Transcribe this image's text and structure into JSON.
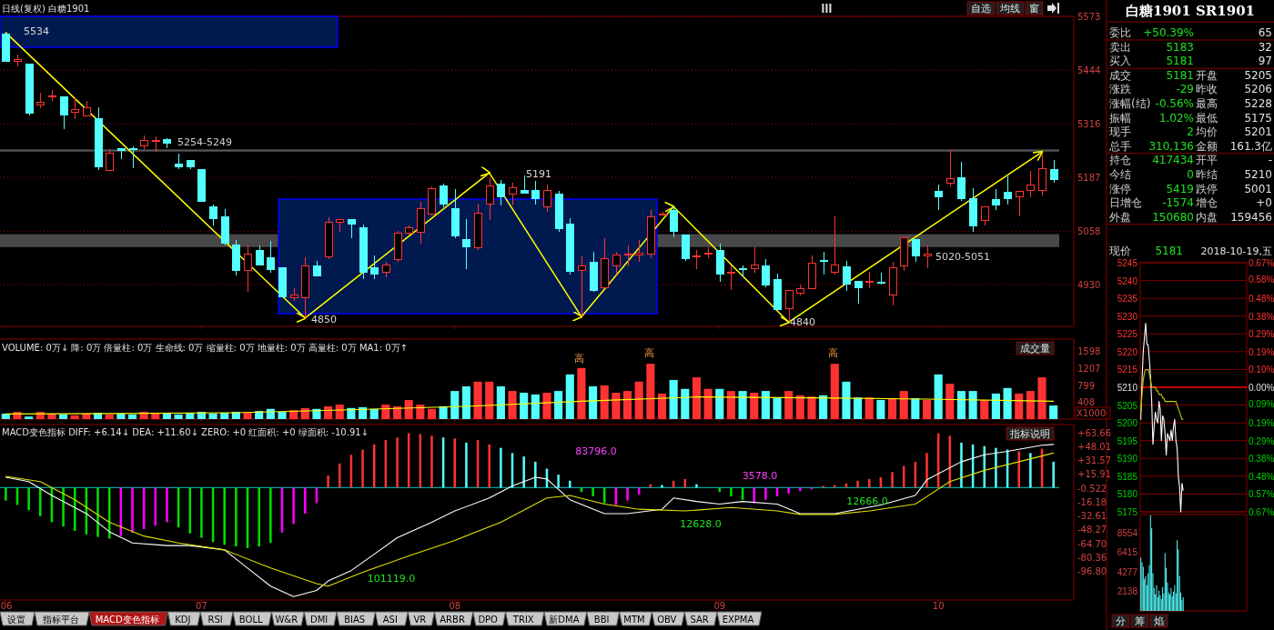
{
  "chart_data": [
    {
      "type": "candlestick",
      "title": "日线(复权) 白糖1901",
      "categories": [
        "06",
        null,
        null,
        null,
        null,
        null,
        null,
        null,
        null,
        null,
        null,
        null,
        null,
        null,
        null,
        null,
        null,
        "07",
        null,
        null,
        null,
        null,
        null,
        null,
        null,
        null,
        null,
        null,
        null,
        null,
        null,
        null,
        null,
        null,
        null,
        null,
        null,
        null,
        null,
        "08",
        null,
        null,
        null,
        null,
        null,
        null,
        null,
        null,
        null,
        null,
        null,
        null,
        null,
        null,
        null,
        null,
        null,
        null,
        null,
        null,
        null,
        null,
        "09",
        null,
        null,
        null,
        null,
        null,
        null,
        null,
        null,
        null,
        null,
        null,
        null,
        null,
        null,
        null,
        null,
        null,
        null,
        "10",
        null,
        null,
        null,
        null,
        null,
        null,
        null,
        null,
        null,
        null
      ],
      "ohlc": [
        [
          5530,
          5534,
          5462,
          5465
        ],
        [
          5466,
          5482,
          5453,
          5470
        ],
        [
          5458,
          5460,
          5336,
          5342
        ],
        [
          5361,
          5390,
          5353,
          5367
        ],
        [
          5380,
          5396,
          5370,
          5382
        ],
        [
          5380,
          5382,
          5303,
          5336
        ],
        [
          5343,
          5378,
          5326,
          5349
        ],
        [
          5334,
          5370,
          5332,
          5355
        ],
        [
          5328,
          5355,
          5205,
          5212
        ],
        [
          5204,
          5255,
          5202,
          5245
        ],
        [
          5257,
          5260,
          5230,
          5251
        ],
        [
          5256,
          5262,
          5210,
          5254
        ],
        [
          5262,
          5287,
          5255,
          5276
        ],
        [
          5274,
          5285,
          5248,
          5275
        ],
        [
          5278,
          5282,
          5258,
          5268
        ],
        [
          5220,
          5245,
          5208,
          5212
        ],
        [
          5227,
          5230,
          5208,
          5212
        ],
        [
          5206,
          5208,
          5127,
          5129
        ],
        [
          5117,
          5122,
          5071,
          5089
        ],
        [
          5092,
          5112,
          5025,
          5029
        ],
        [
          5025,
          5038,
          4953,
          4963
        ],
        [
          4963,
          5025,
          4913,
          5004
        ],
        [
          5013,
          5025,
          4975,
          4978
        ],
        [
          4994,
          5034,
          4959,
          4967
        ],
        [
          4970,
          4972,
          4899,
          4901
        ],
        [
          4899,
          4921,
          4892,
          4905
        ],
        [
          4899,
          4996,
          4850,
          4975
        ],
        [
          4975,
          4986,
          4950,
          4952
        ],
        [
          4996,
          5092,
          4992,
          5079
        ],
        [
          5079,
          5087,
          5056,
          5085
        ],
        [
          5085,
          5087,
          5042,
          5075
        ],
        [
          5067,
          5075,
          4944,
          4959
        ],
        [
          4970,
          5000,
          4944,
          4956
        ],
        [
          4959,
          4984,
          4948,
          4978
        ],
        [
          4990,
          5058,
          4984,
          5053
        ],
        [
          5054,
          5071,
          5048,
          5067
        ],
        [
          5056,
          5129,
          5029,
          5112
        ],
        [
          5100,
          5166,
          5096,
          5160
        ],
        [
          5166,
          5172,
          5115,
          5122
        ],
        [
          5112,
          5160,
          5042,
          5046
        ],
        [
          5039,
          5087,
          4967,
          5021
        ],
        [
          5019,
          5125,
          5014,
          5102
        ],
        [
          5122,
          5187,
          5086,
          5166
        ],
        [
          5170,
          5180,
          5120,
          5141
        ],
        [
          5146,
          5174,
          5120,
          5162
        ],
        [
          5155,
          5191,
          5148,
          5150
        ],
        [
          5156,
          5179,
          5122,
          5137
        ],
        [
          5116,
          5170,
          5104,
          5156
        ],
        [
          5148,
          5154,
          5056,
          5064
        ],
        [
          5075,
          5089,
          4955,
          4961
        ],
        [
          4963,
          4998,
          4853,
          4974
        ],
        [
          4984,
          5009,
          4913,
          4917
        ],
        [
          4923,
          5042,
          4921,
          4992
        ],
        [
          4975,
          5009,
          4955,
          5000
        ],
        [
          5002,
          5025,
          4973,
          5003
        ],
        [
          5000,
          5038,
          4984,
          5006
        ],
        [
          5004,
          5108,
          4994,
          5092
        ],
        [
          5099,
          5104,
          5096,
          5100
        ],
        [
          5108,
          5117,
          5044,
          5058
        ],
        [
          5050,
          5052,
          4986,
          4992
        ],
        [
          4998,
          5014,
          4967,
          4999
        ],
        [
          5004,
          5019,
          4994,
          5005
        ],
        [
          5013,
          5029,
          4936,
          4956
        ],
        [
          4958,
          4975,
          4917,
          4959
        ],
        [
          4968,
          4975,
          4948,
          4966
        ],
        [
          4969,
          5019,
          4959,
          4978
        ],
        [
          4974,
          4992,
          4923,
          4930
        ],
        [
          4942,
          4956,
          4868,
          4870
        ],
        [
          4873,
          4915,
          4840,
          4915
        ],
        [
          4909,
          4930,
          4905,
          4921
        ],
        [
          4921,
          5000,
          4920,
          4981
        ],
        [
          4987,
          5009,
          4955,
          4985
        ],
        [
          4959,
          5094,
          4955,
          4977
        ],
        [
          4973,
          4986,
          4915,
          4931
        ],
        [
          4938,
          4940,
          4884,
          4923
        ],
        [
          4937,
          4961,
          4921,
          4938
        ],
        [
          4936,
          4959,
          4931,
          4935
        ],
        [
          4905,
          4984,
          4880,
          4971
        ],
        [
          4975,
          5044,
          4963,
          5042
        ],
        [
          5038,
          5040,
          4984,
          4999
        ],
        [
          4999,
          5023,
          4970,
          5003
        ],
        [
          5154,
          5170,
          5108,
          5141
        ],
        [
          5173,
          5253,
          5166,
          5185
        ],
        [
          5187,
          5224,
          5131,
          5136
        ],
        [
          5136,
          5162,
          5056,
          5071
        ],
        [
          5083,
          5118,
          5072,
          5116
        ],
        [
          5133,
          5160,
          5108,
          5121
        ],
        [
          5152,
          5189,
          5121,
          5136
        ],
        [
          5140,
          5156,
          5094,
          5154
        ],
        [
          5156,
          5202,
          5139,
          5169
        ],
        [
          5156,
          5241,
          5144,
          5208
        ],
        [
          5205,
          5228,
          5175,
          5181
        ]
      ],
      "tick_labels": "y",
      "ylim": [
        4830,
        5573
      ],
      "yticks": [
        5573,
        5444,
        5316,
        5187,
        5058,
        4930
      ],
      "grid": "y",
      "series": [
        {
          "type": "line",
          "color": "#ffff00",
          "values": [
            5534,
            null,
            null,
            null,
            null,
            null,
            null,
            null,
            null,
            null,
            null,
            null,
            null,
            null,
            null,
            null,
            null,
            null,
            null,
            null,
            null,
            null,
            null,
            null,
            null,
            null,
            4850,
            null,
            null,
            null,
            null,
            null,
            null,
            null,
            null,
            null,
            null,
            null,
            null,
            null,
            null,
            null,
            5198,
            null,
            null,
            null,
            null,
            null,
            null,
            null,
            4853,
            null,
            null,
            null,
            null,
            null,
            null,
            null,
            5117,
            null,
            null,
            null,
            null,
            null,
            null,
            null,
            null,
            null,
            4840,
            null,
            null,
            null,
            null,
            null,
            null,
            null,
            null,
            null,
            null,
            null,
            null,
            null,
            null,
            null,
            null,
            null,
            null,
            null,
            null,
            null,
            5248,
            null
          ]
        }
      ],
      "bands": [
        {
          "axis": "y",
          "from": 5249,
          "to": 5254,
          "label": "5254-5249",
          "color": "#c0c0c0"
        },
        {
          "axis": "y",
          "from": 5020,
          "to": 5051,
          "label": "5020-5051",
          "color": "#a0a0a0"
        }
      ],
      "annotations": [
        "5534",
        "4850",
        "5191",
        "4840",
        "自选",
        "均线",
        "窗"
      ]
    },
    {
      "type": "bar",
      "title": "VOLUME: 0万↓ 降: 0万 倍量柱: 0万 生命线: 0万 缩量柱: 0万 地量柱: 0万 高量柱: 0万 MA1: 0万↑",
      "categories": [
        "06",
        null,
        null,
        null,
        null,
        null,
        null,
        null,
        null,
        null,
        null,
        null,
        null,
        null,
        null,
        null,
        null,
        "07",
        null,
        null,
        null,
        null,
        null,
        null,
        null,
        null,
        null,
        null,
        null,
        null,
        null,
        null,
        null,
        null,
        null,
        null,
        null,
        null,
        null,
        "08",
        null,
        null,
        null,
        null,
        null,
        null,
        null,
        null,
        null,
        null,
        null,
        null,
        null,
        null,
        null,
        null,
        null,
        null,
        null,
        null,
        null,
        null,
        "09",
        null,
        null,
        null,
        null,
        null,
        null,
        null,
        null,
        null,
        null,
        null,
        null,
        null,
        null,
        null,
        null,
        null,
        null,
        "10",
        null,
        null,
        null,
        null,
        null,
        null,
        null,
        null,
        null,
        null
      ],
      "tick_labels": "y",
      "ylim": [
        0,
        1880
      ],
      "yticks": [
        408,
        799,
        1207,
        1598
      ],
      "ylabel": "X1000",
      "series": [
        {
          "type": "bar",
          "values": [
            130,
            170,
            60,
            170,
            130,
            110,
            90,
            130,
            150,
            110,
            130,
            110,
            170,
            150,
            130,
            110,
            150,
            170,
            130,
            150,
            170,
            150,
            190,
            240,
            170,
            210,
            260,
            240,
            300,
            340,
            260,
            280,
            240,
            340,
            300,
            450,
            340,
            240,
            300,
            660,
            770,
            880,
            880,
            770,
            660,
            620,
            580,
            620,
            660,
            1050,
            1200,
            770,
            790,
            620,
            660,
            880,
            1300,
            600,
            920,
            710,
            980,
            710,
            710,
            660,
            660,
            620,
            660,
            490,
            660,
            560,
            530,
            560,
            1300,
            880,
            510,
            510,
            450,
            490,
            660,
            490,
            450,
            1050,
            830,
            660,
            660,
            450,
            600,
            730,
            600,
            660,
            980,
            320
          ],
          "colors": [
            "#54ffff",
            "#ff3232",
            "#54ffff",
            "#ff3232",
            "#ff3232",
            "#54ffff",
            "#ff3232",
            "#ff3232",
            "#54ffff",
            "#ff3232",
            "#54ffff",
            "#54ffff",
            "#ff3232",
            "#ff3232",
            "#54ffff",
            "#54ffff",
            "#54ffff",
            "#54ffff",
            "#54ffff",
            "#54ffff",
            "#54ffff",
            "#ff3232",
            "#54ffff",
            "#54ffff",
            "#54ffff",
            "#ff3232",
            "#ff3232",
            "#54ffff",
            "#ff3232",
            "#ff3232",
            "#54ffff",
            "#54ffff",
            "#54ffff",
            "#ff3232",
            "#ff3232",
            "#ff3232",
            "#ff3232",
            "#ff3232",
            "#54ffff",
            "#54ffff",
            "#54ffff",
            "#ff3232",
            "#ff3232",
            "#54ffff",
            "#ff3232",
            "#54ffff",
            "#54ffff",
            "#ff3232",
            "#54ffff",
            "#54ffff",
            "#ff3232",
            "#54ffff",
            "#ff3232",
            "#ff3232",
            "#ff3232",
            "#ff3232",
            "#ff3232",
            "#ff3232",
            "#54ffff",
            "#54ffff",
            "#ff3232",
            "#ff3232",
            "#54ffff",
            "#ff3232",
            "#54ffff",
            "#ff3232",
            "#54ffff",
            "#54ffff",
            "#ff3232",
            "#ff3232",
            "#ff3232",
            "#54ffff",
            "#ff3232",
            "#54ffff",
            "#54ffff",
            "#ff3232",
            "#54ffff",
            "#ff3232",
            "#ff3232",
            "#54ffff",
            "#ff3232",
            "#54ffff",
            "#ff3232",
            "#54ffff",
            "#54ffff",
            "#ff3232",
            "#54ffff",
            "#54ffff",
            "#ff3232",
            "#ff3232",
            "#ff3232",
            "#54ffff"
          ]
        },
        {
          "type": "line",
          "color": "#ffff00",
          "values": [
            120,
            null,
            null,
            null,
            null,
            null,
            null,
            null,
            null,
            null,
            130,
            null,
            null,
            null,
            null,
            null,
            null,
            null,
            null,
            null,
            150,
            null,
            null,
            null,
            null,
            null,
            null,
            null,
            null,
            null,
            220,
            null,
            null,
            null,
            null,
            null,
            null,
            null,
            null,
            null,
            300,
            null,
            null,
            null,
            null,
            null,
            null,
            null,
            null,
            null,
            420,
            null,
            null,
            null,
            null,
            null,
            null,
            null,
            null,
            null,
            520,
            null,
            null,
            null,
            null,
            null,
            null,
            null,
            null,
            null,
            500,
            null,
            null,
            null,
            null,
            null,
            null,
            null,
            null,
            null,
            470,
            null,
            null,
            null,
            null,
            null,
            null,
            null,
            null,
            null,
            null,
            420
          ]
        }
      ],
      "annotations": [
        "高",
        "高",
        "高",
        "成交量"
      ]
    },
    {
      "type": "bar",
      "title": "MACD变色指标 DIFF: +6.14↓ DEA: +11.60↓ ZERO: +0 红面积: +0 绿面积: -10.91↓",
      "categories": [
        "06",
        null,
        null,
        null,
        null,
        null,
        null,
        null,
        null,
        null,
        null,
        null,
        null,
        null,
        null,
        null,
        null,
        "07",
        null,
        null,
        null,
        null,
        null,
        null,
        null,
        null,
        null,
        null,
        null,
        null,
        null,
        null,
        null,
        null,
        null,
        null,
        null,
        null,
        null,
        "08",
        null,
        null,
        null,
        null,
        null,
        null,
        null,
        null,
        null,
        null,
        null,
        null,
        null,
        null,
        null,
        null,
        null,
        null,
        null,
        null,
        null,
        null,
        "09",
        null,
        null,
        null,
        null,
        null,
        null,
        null,
        null,
        null,
        null,
        null,
        null,
        null,
        null,
        null,
        null,
        null,
        null,
        "10",
        null,
        null,
        null,
        null,
        null,
        null,
        null,
        null,
        null,
        null
      ],
      "ylim": [
        -130,
        73
      ],
      "yticks": [
        {
          "value": 63.66,
          "label": "+63.66"
        },
        {
          "value": 48.01,
          "label": "+48.01"
        },
        {
          "value": 31.57,
          "label": "+31.57"
        },
        {
          "value": 15.91,
          "label": "+15.91"
        },
        {
          "value": -0.522,
          "label": "-0.522"
        },
        {
          "value": -16.18,
          "label": "-16.18"
        },
        {
          "value": -32.61,
          "label": "-32.61"
        },
        {
          "value": -48.27,
          "label": "-48.27"
        },
        {
          "value": -64.7,
          "label": "-64.70"
        },
        {
          "value": -80.36,
          "label": "-80.36"
        },
        {
          "value": -96.8,
          "label": "-96.80"
        }
      ],
      "series": [
        {
          "type": "bar",
          "values": [
            -15,
            -20,
            -26,
            -33,
            -40,
            -45,
            -50,
            -54,
            -57,
            -59,
            -56,
            -52,
            -48,
            -44,
            -40,
            -46,
            -53,
            -58,
            -63,
            -66,
            -68,
            -70,
            -68,
            -64,
            -52,
            -42,
            -30,
            -18,
            14,
            28,
            38,
            44,
            50,
            55,
            58,
            63,
            62,
            60,
            58,
            57,
            52,
            55,
            50,
            46,
            40,
            36,
            30,
            22,
            15,
            8,
            -5,
            -10,
            -18,
            -20,
            -15,
            -8,
            4,
            3,
            8,
            10,
            4,
            null,
            -5,
            -10,
            -14,
            -18,
            -14,
            -10,
            -7,
            -4,
            -2,
            2,
            3,
            5,
            8,
            10,
            12,
            18,
            25,
            30,
            40,
            63,
            60,
            52,
            50,
            48,
            46,
            44,
            42,
            40,
            45,
            30
          ],
          "colors": [
            "#00e000",
            "#00e000",
            "#00e000",
            "#00e000",
            "#00e000",
            "#00e000",
            "#00e000",
            "#00e000",
            "#00e000",
            "#00e000",
            "#ff00ff",
            "#ff00ff",
            "#ff00ff",
            "#ff00ff",
            "#ff00ff",
            "#00e000",
            "#00e000",
            "#00e000",
            "#00e000",
            "#00e000",
            "#00e000",
            "#00e000",
            "#00e000",
            "#00e000",
            "#ff00ff",
            "#ff00ff",
            "#ff00ff",
            "#ff00ff",
            "#ff3232",
            "#ff3232",
            "#ff3232",
            "#ff3232",
            "#ff3232",
            "#ff3232",
            "#ff3232",
            "#ff3232",
            "#ff3232",
            "#ff3232",
            "#54ffff",
            "#ff3232",
            "#54ffff",
            "#ff3232",
            "#ff3232",
            "#54ffff",
            "#54ffff",
            "#54ffff",
            "#54ffff",
            "#54ffff",
            "#54ffff",
            "#54ffff",
            "#00e000",
            "#00e000",
            "#00e000",
            "#ff00ff",
            "#ff00ff",
            "#ff00ff",
            "#ff3232",
            "#54ffff",
            "#ff3232",
            "#ff3232",
            "#54ffff",
            null,
            "#00e000",
            "#00e000",
            "#00e000",
            "#ff00ff",
            "#ff00ff",
            "#ff00ff",
            "#ff00ff",
            "#ff00ff",
            "#ff00ff",
            "#ff3232",
            "#ff3232",
            "#ff3232",
            "#ff3232",
            "#ff3232",
            "#ff3232",
            "#ff3232",
            "#ff3232",
            "#ff3232",
            "#ff3232",
            "#ff3232",
            "#ff3232",
            "#54ffff",
            "#54ffff",
            "#54ffff",
            "#54ffff",
            "#54ffff",
            "#ff3232",
            "#54ffff",
            "#ff3232",
            "#54ffff"
          ]
        },
        {
          "type": "line",
          "color": "#ffffff",
          "values": [
            12,
            null,
            7,
            null,
            -9,
            null,
            null,
            -30,
            null,
            -51,
            null,
            -64,
            null,
            null,
            -67,
            null,
            -67,
            null,
            null,
            -72,
            null,
            -93,
            null,
            -114,
            null,
            -126,
            null,
            -119,
            -108,
            null,
            -96,
            null,
            -77,
            null,
            -58,
            null,
            null,
            -40,
            null,
            -27,
            null,
            null,
            -12,
            null,
            2,
            null,
            12,
            10,
            null,
            -14,
            null,
            null,
            -30,
            null,
            -30,
            null,
            null,
            -25,
            -12,
            null,
            -16,
            null,
            -19,
            null,
            -16,
            null,
            null,
            -19,
            null,
            -30,
            null,
            null,
            -30,
            null,
            -25,
            null,
            -20,
            null,
            null,
            -9,
            9,
            null,
            null,
            30,
            null,
            38,
            null,
            42,
            null,
            null,
            49,
            50
          ]
        },
        {
          "type": "line",
          "color": "#e0e000",
          "values": [
            13,
            null,
            null,
            7,
            null,
            null,
            -14,
            null,
            null,
            -40,
            null,
            null,
            -56,
            null,
            null,
            -64,
            null,
            null,
            null,
            -72,
            null,
            null,
            null,
            -93,
            null,
            null,
            null,
            -111,
            -114,
            null,
            null,
            -98,
            null,
            null,
            null,
            -79,
            null,
            null,
            null,
            -61,
            null,
            null,
            null,
            -40,
            null,
            null,
            null,
            -12,
            null,
            -9,
            null,
            null,
            -19,
            null,
            null,
            -25,
            null,
            null,
            null,
            -27,
            null,
            null,
            null,
            -23,
            null,
            null,
            null,
            -27,
            null,
            -31,
            null,
            null,
            -31,
            null,
            null,
            -27,
            null,
            null,
            null,
            -19,
            null,
            null,
            7,
            null,
            null,
            20,
            null,
            null,
            30,
            null,
            null,
            40
          ]
        }
      ],
      "ref_lines": [
        {
          "axis": "y",
          "value": 0,
          "color": "#00a0a0"
        }
      ],
      "annotations": [
        "83796.0",
        "101119.0",
        "12628.0",
        "3578.0",
        "12666.0",
        "指标说明"
      ]
    },
    {
      "type": "other",
      "annotations": [
        "设置",
        "指标平台",
        "MACD变色指标",
        "KDJ",
        "RSI",
        "BOLL",
        "W&R",
        "DMI",
        "BIAS",
        "ASI",
        "VR",
        "ARBR",
        "DPO",
        "TRIX",
        "新DMA",
        "BBI",
        "MTM",
        "OBV",
        "SAR",
        "EXPMA"
      ]
    },
    {
      "type": "other",
      "title": "白糖1901 SR1901",
      "annotations": [
        "委比  +50.39%  65",
        "卖出  5183  32",
        "买入  5181  97",
        "成交  5181  开盘  5205",
        "涨跌  -29  昨收  5206",
        "涨幅(结)  -0.56%  最高  5228",
        "振幅  1.02%  最低  5175",
        "现手  2  均价  5201",
        "总手  310,136  金额  161.3亿",
        "持仓  417434  开平  -",
        "今结  0  昨结  5210",
        "涨停  5419  跌停  5001",
        "日增仓  -1574  增仓  +0",
        "外盘  150680  内盘  159456",
        "现价  5181  2018-10-19,五"
      ]
    },
    {
      "type": "line",
      "categories": [
        null,
        null,
        null,
        null,
        null,
        null,
        null,
        null,
        null,
        null,
        null,
        null,
        null,
        null,
        null,
        null,
        null,
        null,
        null,
        null,
        null,
        null,
        null,
        null,
        null,
        null,
        null,
        null,
        null,
        null,
        null,
        null,
        null,
        null,
        null,
        null,
        null,
        null,
        null,
        null,
        null,
        null,
        null,
        null,
        null,
        null,
        null,
        null,
        null,
        null,
        null,
        null,
        null,
        null,
        null,
        null,
        null,
        null,
        null,
        null,
        null,
        null,
        null,
        null,
        null,
        null,
        null,
        null,
        null,
        null,
        null,
        null,
        null,
        null,
        null,
        null,
        null,
        null,
        null,
        null,
        null,
        null,
        null,
        null,
        null,
        null,
        null,
        null
      ],
      "series": [
        {
          "color": "#ffffff",
          "values": [
            5201,
            5212,
            5220,
            5224,
            5228,
            5222,
            5222,
            5218,
            5213,
            5206,
            5194,
            5199,
            5203,
            5201,
            5200,
            5206,
            5204,
            5195,
            5202,
            5201,
            5197,
            5191,
            5197,
            5196,
            5195,
            5198,
            5195,
            5199,
            5201,
            5195,
            5193,
            5185,
            5182,
            5175,
            5183,
            5181,
            null,
            null,
            null,
            null,
            null,
            null,
            null,
            null,
            null,
            null,
            null,
            null,
            null,
            null,
            null,
            null,
            null,
            null,
            null,
            null,
            null,
            null,
            null,
            null,
            null,
            null,
            null,
            null,
            null,
            null,
            null,
            null,
            null,
            null,
            null,
            null,
            null,
            null,
            null,
            null,
            null,
            null,
            null,
            null,
            null,
            null,
            null,
            null,
            null,
            null,
            null,
            null
          ]
        },
        {
          "color": "#c8c800",
          "values": [
            5203,
            5208,
            5212,
            5214,
            5215,
            5215,
            5215,
            5214,
            5212,
            5210,
            5210,
            5210,
            5210,
            5209,
            5209,
            5208,
            5208,
            5208,
            5207,
            5207,
            5206,
            5206,
            5206,
            5206,
            5206,
            5206,
            5206,
            5206,
            5206,
            5206,
            5205,
            5204,
            5203,
            5202,
            5201,
            5201,
            null,
            null,
            null,
            null,
            null,
            null,
            null,
            null,
            null,
            null,
            null,
            null,
            null,
            null,
            null,
            null,
            null,
            null,
            null,
            null,
            null,
            null,
            null,
            null,
            null,
            null,
            null,
            null,
            null,
            null,
            null,
            null,
            null,
            null,
            null,
            null,
            null,
            null,
            null,
            null,
            null,
            null,
            null,
            null,
            null,
            null,
            null,
            null,
            null,
            null,
            null,
            null
          ]
        }
      ],
      "ylim": [
        5175,
        5245
      ],
      "yticks": [
        5175,
        5180,
        5185,
        5190,
        5195,
        5200,
        5205,
        5210,
        5215,
        5220,
        5225,
        5230,
        5235,
        5240,
        5245
      ],
      "y2lim": [
        -0.67,
        0.67
      ],
      "y2ticks": [
        {
          "value": 0.67,
          "label": "0.67%"
        },
        {
          "value": 0.58,
          "label": "0.58%"
        },
        {
          "value": 0.48,
          "label": "0.48%"
        },
        {
          "value": 0.38,
          "label": "0.38%"
        },
        {
          "value": 0.29,
          "label": "0.29%"
        },
        {
          "value": 0.19,
          "label": "0.19%"
        },
        {
          "value": 0.1,
          "label": "0.10%"
        },
        {
          "value": 0,
          "label": "0.00%"
        },
        {
          "value": -0.09,
          "label": "0.09%"
        },
        {
          "value": -0.19,
          "label": "0.19%"
        },
        {
          "value": -0.29,
          "label": "0.29%"
        },
        {
          "value": -0.38,
          "label": "0.38%"
        },
        {
          "value": -0.48,
          "label": "0.48%"
        },
        {
          "value": -0.57,
          "label": "0.57%"
        },
        {
          "value": -0.67,
          "label": "0.67%"
        }
      ],
      "ref_lines": [
        {
          "axis": "y",
          "value": 5210,
          "color": "#c00000"
        }
      ],
      "grid": "y"
    },
    {
      "type": "bar",
      "categories": [
        null,
        null,
        null,
        null,
        null,
        null,
        null,
        null,
        null,
        null,
        null,
        null,
        null,
        null,
        null,
        null,
        null,
        null,
        null,
        null,
        null,
        null,
        null,
        null,
        null,
        null,
        null,
        null,
        null,
        null,
        null,
        null,
        null,
        null,
        null,
        null,
        null,
        null,
        null,
        null,
        null,
        null,
        null,
        null,
        null,
        null,
        null,
        null,
        null,
        null,
        null,
        null,
        null,
        null,
        null,
        null,
        null,
        null,
        null,
        null,
        null,
        null,
        null,
        null,
        null,
        null,
        null,
        null,
        null,
        null,
        null,
        null,
        null,
        null,
        null,
        null,
        null,
        null,
        null,
        null,
        null,
        null,
        null,
        null,
        null,
        null,
        null,
        null
      ],
      "values": [
        5800,
        5300,
        4800,
        3500,
        3800,
        2800,
        4100,
        5000,
        10400,
        9000,
        4100,
        2500,
        1800,
        2800,
        1500,
        2200,
        1700,
        1300,
        2600,
        1900,
        6300,
        4700,
        3100,
        2000,
        1800,
        2500,
        1600,
        2100,
        2800,
        1900,
        7700,
        6700,
        3800,
        2000,
        1200,
        1500,
        null,
        null,
        null,
        null,
        null,
        null,
        null,
        null,
        null,
        null,
        null,
        null,
        null,
        null,
        null,
        null,
        null,
        null,
        null,
        null,
        null,
        null,
        null,
        null,
        null,
        null,
        null,
        null,
        null,
        null,
        null,
        null,
        null,
        null,
        null,
        null,
        null,
        null,
        null,
        null,
        null,
        null,
        null,
        null,
        null,
        null,
        null,
        null,
        null,
        null,
        null,
        null
      ],
      "color": "#54ffff",
      "ylim": [
        0,
        10500
      ],
      "yticks": [
        2138,
        4277,
        6415,
        8554
      ],
      "annotations": [
        "分",
        "筹",
        "焰"
      ]
    }
  ]
}
